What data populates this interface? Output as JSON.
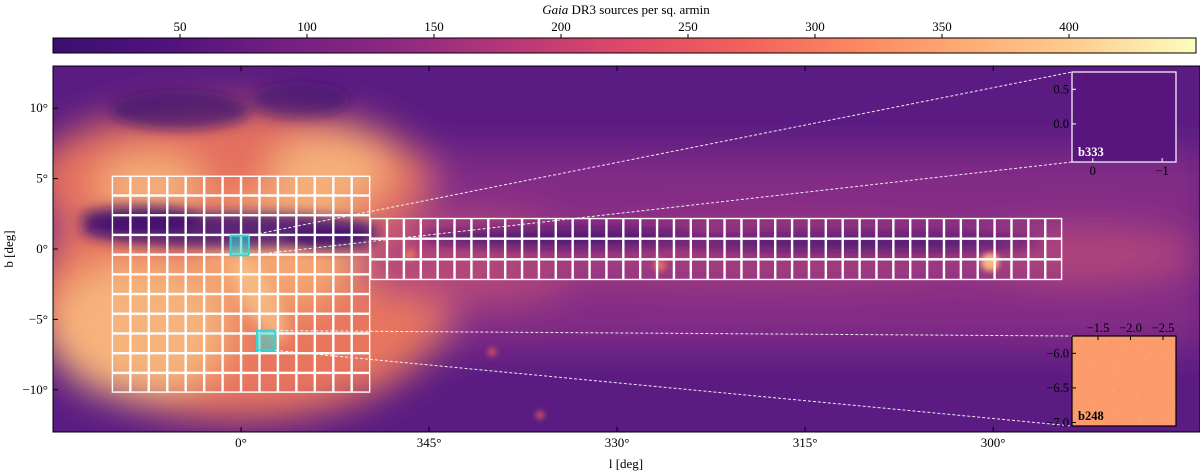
{
  "colors": {
    "magma_stops": [
      "#3b0f70",
      "#51127c",
      "#721f81",
      "#8c2981",
      "#b73779",
      "#de4968",
      "#f1605d",
      "#fb8761",
      "#fdac75",
      "#fecf92",
      "#fcfdbf"
    ],
    "field_outline": "#ffffff",
    "highlight": "#33d6d6"
  },
  "chart_data": {
    "type": "heatmap",
    "colorbar": {
      "label_italic": "Gaia",
      "label_rest": " DR3 sources per sq. armin",
      "range": [
        0,
        450
      ],
      "ticks": [
        50,
        100,
        150,
        200,
        250,
        300,
        350,
        400
      ]
    },
    "xlabel": "l [deg]",
    "ylabel": "b [deg]",
    "xlim": [
      15,
      283.5
    ],
    "ylim": [
      -13,
      13
    ],
    "x_ticks": [
      {
        "value": 0,
        "label": "0°"
      },
      {
        "value": 345,
        "label": "345°"
      },
      {
        "value": 330,
        "label": "330°"
      },
      {
        "value": 315,
        "label": "315°"
      },
      {
        "value": 300,
        "label": "300°"
      }
    ],
    "y_ticks": [
      {
        "value": 10,
        "label": "10°"
      },
      {
        "value": 5,
        "label": "5°"
      },
      {
        "value": 0,
        "label": "0°"
      },
      {
        "value": -5,
        "label": "−5°"
      },
      {
        "value": -10,
        "label": "−10°"
      }
    ],
    "bulge_grid": {
      "l_start": 10.3,
      "l_end": -10.3,
      "columns": 14,
      "b_start": 5.2,
      "b_end": -10.2,
      "rows": 11
    },
    "disk_strip": {
      "l_start": -10.3,
      "l_end": -65.5,
      "columns": 41,
      "b_start": 2.2,
      "b_end": -2.2,
      "rows": 3
    },
    "highlighted_fields": [
      {
        "name": "b333",
        "l_center": 0.1,
        "b_center": 0.25
      },
      {
        "name": "b248",
        "l_center": -2.0,
        "b_center": -6.5
      }
    ],
    "insets": [
      {
        "field": "b333",
        "label": "b333",
        "xlim": [
          0.3,
          -1.2
        ],
        "ylim": [
          -0.55,
          0.75
        ],
        "x_ticks": [
          {
            "value": 0,
            "label": "0"
          },
          {
            "value": -1,
            "label": "−1"
          }
        ],
        "y_ticks": [
          {
            "value": 0.5,
            "label": "0.5"
          },
          {
            "value": 0.0,
            "label": "0.0"
          }
        ],
        "density": 55
      },
      {
        "field": "b248",
        "label": "b248",
        "xlim": [
          -1.1,
          -2.7
        ],
        "ylim": [
          -7.05,
          -5.75
        ],
        "x_ticks": [
          {
            "value": -1.5,
            "label": "−1.5"
          },
          {
            "value": -2.0,
            "label": "−2.0"
          },
          {
            "value": -2.5,
            "label": "−2.5"
          }
        ],
        "y_ticks": [
          {
            "value": -6.0,
            "label": "−6.0"
          },
          {
            "value": -6.5,
            "label": "−6.5"
          },
          {
            "value": -7.0,
            "label": "−7.0"
          }
        ],
        "density": 340
      }
    ]
  }
}
